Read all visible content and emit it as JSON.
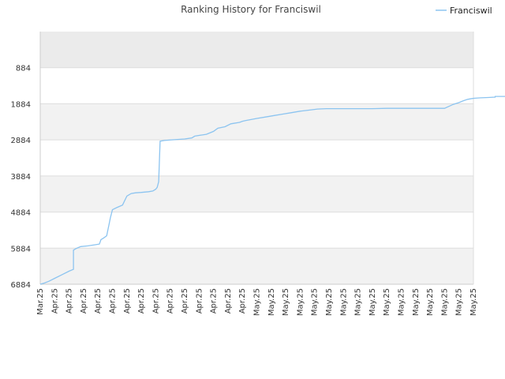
{
  "chart_data": {
    "type": "line",
    "title": "Ranking History for Franciswil",
    "xlabel": "",
    "ylabel": "",
    "y_inverted": true,
    "ylim": [
      6884,
      -116
    ],
    "y_ticks": [
      884,
      1884,
      2884,
      3884,
      4884,
      5884,
      6884
    ],
    "x_tick_labels": [
      "Mar.25",
      "Apr.25",
      "Apr.25",
      "Apr.25",
      "Apr.25",
      "Apr.25",
      "Apr.25",
      "Apr.25",
      "Apr.25",
      "Apr.25",
      "Apr.25",
      "Apr.25",
      "Apr.25",
      "Apr.25",
      "Apr.25",
      "May.25",
      "May.25",
      "May.25",
      "May.25",
      "May.25",
      "May.25",
      "May.25",
      "May.25",
      "May.25",
      "May.25",
      "May.25",
      "May.25",
      "May.25",
      "May.25",
      "May.25",
      "May.25"
    ],
    "legend": {
      "position": "top-right"
    },
    "colors": {
      "line": "#8cc4f0",
      "band_light": "#ffffff",
      "band_dark": "#f2f2f2",
      "band_top": "#ebebeb",
      "grid": "#dddddd",
      "axis": "#cccccc"
    },
    "series": [
      {
        "name": "Franciswil",
        "x": [
          0,
          0.3,
          0.6,
          1.0,
          1.5,
          2.0,
          2.3,
          2.3,
          2.5,
          2.8,
          3.3,
          3.8,
          4.1,
          4.2,
          4.4,
          4.6,
          4.8,
          4.85,
          5.0,
          5.3,
          5.7,
          6.0,
          6.3,
          6.6,
          7.0,
          7.5,
          7.8,
          8.0,
          8.1,
          8.2,
          8.3,
          8.6,
          9.2,
          10.0,
          10.5,
          10.7,
          11.0,
          11.5,
          12.0,
          12.3,
          12.8,
          13.2,
          13.8,
          14.0,
          14.2,
          14.6,
          15.0,
          15.6,
          16.2,
          16.8,
          17.4,
          18.0,
          18.6,
          19.2,
          19.8,
          20.4,
          21.0,
          22.0,
          23.0,
          24.0,
          25.0,
          25.3,
          27.0,
          28.0,
          28.6,
          29.0,
          29.3,
          29.6,
          29.9,
          30.1,
          30.5,
          31.0,
          31.5,
          31.5,
          32.2,
          33.0
        ],
        "y": [
          6884,
          6850,
          6800,
          6720,
          6620,
          6520,
          6470,
          5940,
          5890,
          5840,
          5820,
          5790,
          5770,
          5650,
          5600,
          5540,
          5160,
          5050,
          4820,
          4760,
          4690,
          4440,
          4370,
          4350,
          4340,
          4320,
          4300,
          4250,
          4200,
          4040,
          2920,
          2900,
          2880,
          2860,
          2830,
          2780,
          2760,
          2730,
          2650,
          2560,
          2520,
          2440,
          2400,
          2370,
          2350,
          2320,
          2290,
          2250,
          2210,
          2170,
          2130,
          2090,
          2060,
          2030,
          2020,
          2020,
          2020,
          2020,
          2020,
          2010,
          2010,
          2010,
          2010,
          2010,
          1900,
          1850,
          1800,
          1760,
          1740,
          1730,
          1720,
          1710,
          1700,
          1680,
          1680,
          1680
        ]
      }
    ]
  }
}
